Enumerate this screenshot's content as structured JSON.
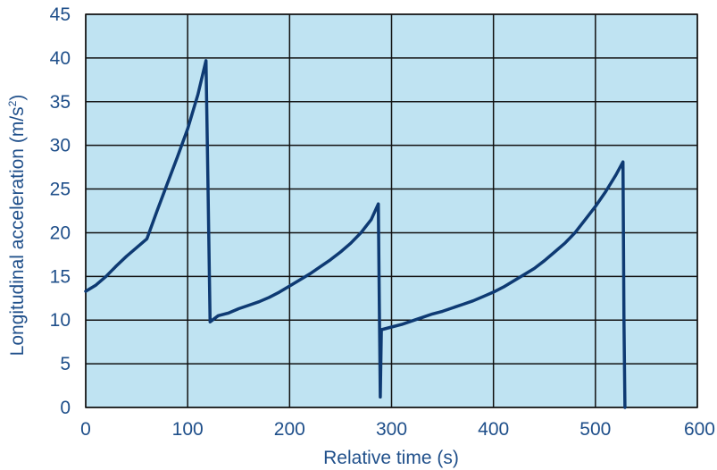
{
  "chart_data": {
    "type": "line",
    "title": "",
    "xlabel": "Relative time (s)",
    "ylabel_main": "Longitudinal acceleration (m/s",
    "ylabel_sup": "2",
    "ylabel_close": ")",
    "xlim": [
      0,
      600
    ],
    "ylim": [
      0,
      45
    ],
    "x_ticks": [
      0,
      100,
      200,
      300,
      400,
      500,
      600
    ],
    "y_ticks": [
      0,
      5,
      10,
      15,
      20,
      25,
      30,
      35,
      40,
      45
    ],
    "grid": true,
    "colors": {
      "plot_background": "#bfe3f2",
      "grid": "#111111",
      "line": "#0e3a73",
      "text": "#1f4f8a"
    },
    "series": [
      {
        "x": [
          0,
          10,
          20,
          30,
          40,
          50,
          60,
          70,
          80,
          90,
          100,
          110,
          118,
          120,
          122,
          130,
          140,
          150,
          160,
          170,
          180,
          190,
          200,
          210,
          220,
          230,
          240,
          250,
          260,
          270,
          280,
          287,
          288,
          289,
          290,
          300,
          310,
          320,
          330,
          340,
          350,
          360,
          370,
          380,
          390,
          400,
          410,
          420,
          430,
          440,
          450,
          460,
          470,
          480,
          490,
          500,
          510,
          520,
          527,
          528,
          529
        ],
        "y": [
          13.3,
          14,
          15,
          16.2,
          17.3,
          18.3,
          19.3,
          22.5,
          25.6,
          28.7,
          31.9,
          35.8,
          39.7,
          25,
          9.8,
          10.5,
          10.8,
          11.3,
          11.7,
          12.1,
          12.6,
          13.2,
          13.9,
          14.6,
          15.3,
          16.1,
          16.9,
          17.8,
          18.8,
          20,
          21.5,
          23.3,
          12,
          1.2,
          8.9,
          9.2,
          9.5,
          9.9,
          10.3,
          10.7,
          11,
          11.4,
          11.8,
          12.2,
          12.7,
          13.2,
          13.8,
          14.5,
          15.2,
          15.9,
          16.8,
          17.8,
          18.8,
          20,
          21.5,
          23,
          24.7,
          26.6,
          28.1,
          10,
          0
        ]
      }
    ]
  }
}
